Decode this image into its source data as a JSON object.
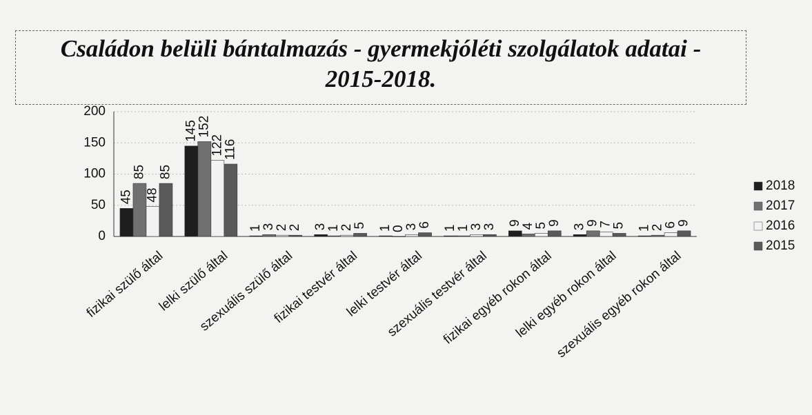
{
  "chart_data": {
    "type": "bar",
    "title": "Családon belüli bántalmazás - gyermekjóléti szolgálatok adatai - 2015-2018.",
    "categories": [
      "fizikai szülő által",
      "lelki szülő által",
      "szexuális szülő által",
      "fizikai testvér által",
      "lelki testvér által",
      "szexuális testvér által",
      "fizikai egyéb rokon által",
      "lelki egyéb rokon által",
      "szexuális egyéb rokon által"
    ],
    "series": [
      {
        "name": "2018",
        "color": "#1e1e1e",
        "values": [
          45,
          145,
          1,
          3,
          1,
          1,
          9,
          3,
          1
        ]
      },
      {
        "name": "2017",
        "color": "#707070",
        "values": [
          85,
          152,
          3,
          1,
          0,
          1,
          4,
          9,
          2
        ]
      },
      {
        "name": "2016",
        "color": "#f2f2f2",
        "values": [
          48,
          122,
          2,
          2,
          3,
          3,
          5,
          7,
          6
        ]
      },
      {
        "name": "2015",
        "color": "#5a5a5a",
        "values": [
          85,
          116,
          2,
          5,
          6,
          3,
          9,
          5,
          9
        ]
      }
    ],
    "ylim": [
      0,
      200
    ],
    "yticks": [
      0,
      50,
      100,
      150,
      200
    ],
    "grid": true,
    "legend": "right"
  }
}
